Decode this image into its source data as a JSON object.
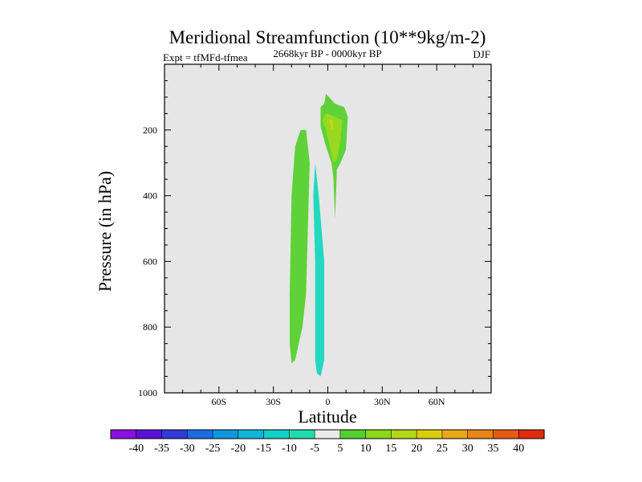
{
  "chart_data": {
    "type": "contour",
    "title": "Meridional Streamfunction (10**9kg/m-2)",
    "subtitle_left": "Expt = tfMFd-tfmea",
    "subtitle_center": "2668kyr BP - 0000kyr BP",
    "subtitle_right": "DJF",
    "xlabel": "Latitude",
    "ylabel": "Pressure (in hPa)",
    "xlim": [
      -90,
      90
    ],
    "ylim": [
      1000,
      0
    ],
    "x_ticks": [
      {
        "value": -60,
        "label": "60S"
      },
      {
        "value": -30,
        "label": "30S"
      },
      {
        "value": 0,
        "label": "0"
      },
      {
        "value": 30,
        "label": "30N"
      },
      {
        "value": 60,
        "label": "60N"
      }
    ],
    "y_ticks": [
      {
        "value": 200,
        "label": "200"
      },
      {
        "value": 400,
        "label": "400"
      },
      {
        "value": 600,
        "label": "600"
      },
      {
        "value": 800,
        "label": "800"
      },
      {
        "value": 1000,
        "label": "1000"
      }
    ],
    "y_minor_step": 50,
    "x_minor_step": 10,
    "colorbar": {
      "labels": [
        "-40",
        "-35",
        "-30",
        "-25",
        "-20",
        "-15",
        "-10",
        "-5",
        "5",
        "10",
        "15",
        "20",
        "25",
        "30",
        "35",
        "40"
      ],
      "colors": [
        "#8a10e0",
        "#5b10d8",
        "#2f3ad8",
        "#1a6ee0",
        "#0f96e0",
        "#10b4d8",
        "#12cfc8",
        "#22dcae",
        "#eaeaea",
        "#52d030",
        "#8cd81a",
        "#b4d814",
        "#dccc10",
        "#e8a818",
        "#e88418",
        "#e85a14",
        "#e02c0c"
      ]
    },
    "regions": [
      {
        "name": "positive-band-sh",
        "level": "5 to 10",
        "color": "#5ed238",
        "points": [
          [
            -12,
            200
          ],
          [
            -10,
            300
          ],
          [
            -11,
            500
          ],
          [
            -12,
            700
          ],
          [
            -14,
            800
          ],
          [
            -18,
            900
          ],
          [
            -20,
            910
          ],
          [
            -21,
            850
          ],
          [
            -21,
            700
          ],
          [
            -20,
            400
          ],
          [
            -18,
            250
          ],
          [
            -15,
            200
          ]
        ]
      },
      {
        "name": "negative-band-eq",
        "level": "-10 to -5",
        "color": "#22d8c0",
        "points": [
          [
            -7,
            300
          ],
          [
            -5,
            400
          ],
          [
            -2,
            600
          ],
          [
            -2,
            900
          ],
          [
            -4,
            950
          ],
          [
            -6,
            940
          ],
          [
            -7,
            900
          ],
          [
            -7,
            600
          ],
          [
            -8,
            400
          ]
        ]
      },
      {
        "name": "positive-band-upper",
        "level": "5 to 10",
        "color": "#5ed238",
        "points": [
          [
            -1,
            90
          ],
          [
            4,
            120
          ],
          [
            9,
            130
          ],
          [
            11,
            160
          ],
          [
            10,
            260
          ],
          [
            7,
            300
          ],
          [
            5,
            320
          ],
          [
            4,
            470
          ],
          [
            3,
            340
          ],
          [
            2,
            300
          ],
          [
            -1,
            250
          ],
          [
            -4,
            190
          ],
          [
            -4,
            130
          ],
          [
            -2,
            120
          ]
        ]
      },
      {
        "name": "positive-core-upper",
        "level": "10 to 15",
        "color": "#98d81e",
        "points": [
          [
            -1,
            150
          ],
          [
            4,
            160
          ],
          [
            8,
            170
          ],
          [
            7,
            230
          ],
          [
            5,
            290
          ],
          [
            3,
            300
          ],
          [
            1,
            250
          ],
          [
            -1,
            200
          ],
          [
            -3,
            170
          ]
        ]
      },
      {
        "name": "positive-peak-upper",
        "level": "15 to 20",
        "color": "#c8d414",
        "points": [
          [
            1,
            170
          ],
          [
            3,
            170
          ],
          [
            3,
            195
          ],
          [
            2,
            200
          ]
        ]
      }
    ]
  }
}
